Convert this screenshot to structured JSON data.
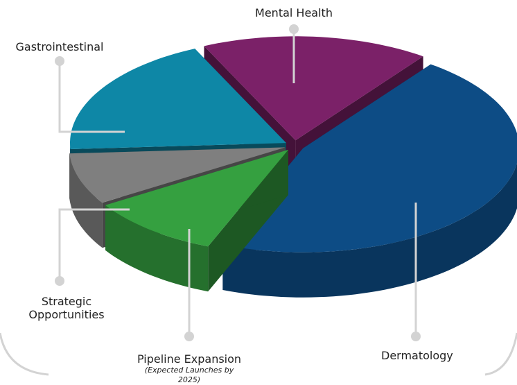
{
  "chart_data": {
    "type": "pie3d",
    "categories": [
      "Mental Health",
      "Dermatology",
      "Pipeline Expansion",
      "Strategic Opportunities",
      "Gastrointestinal"
    ],
    "values": [
      17,
      46,
      10,
      8,
      19
    ],
    "colors": [
      "#7b2168",
      "#0d4c85",
      "#35a040",
      "#7f7f7f",
      "#0e87a6"
    ],
    "notes": {
      "2": "(Expected Launches by 2025)"
    },
    "start_angle": -115
  }
}
